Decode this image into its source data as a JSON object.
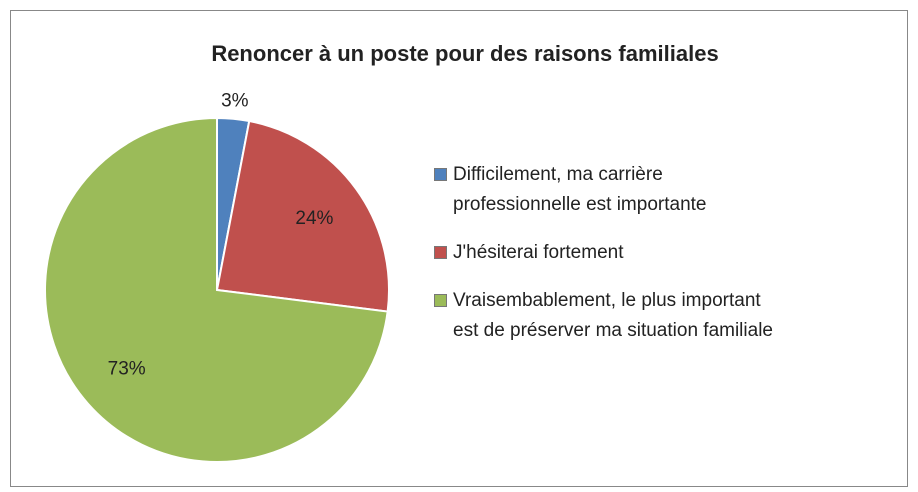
{
  "chart_data": {
    "type": "pie",
    "title": "Renoncer à un poste pour des raisons familiales",
    "categories": [
      "Difficilement, ma carrière\nprofessionnelle est importante",
      "J'hésiterai fortement",
      "Vraisembablement, le plus important\nest de préserver ma situation familiale"
    ],
    "values": [
      3,
      24,
      73
    ],
    "value_labels": [
      "3%",
      "24%",
      "73%"
    ],
    "colors": [
      "#4f81bd",
      "#c0504d",
      "#9bbb59"
    ],
    "legend": "right"
  }
}
